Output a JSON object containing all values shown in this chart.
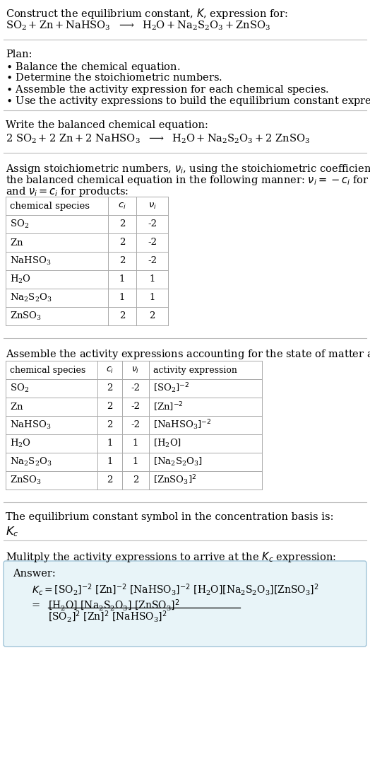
{
  "bg_color": "#ffffff",
  "text_color": "#000000",
  "line_color": "#bbbbbb",
  "answer_bg": "#e8f4f8",
  "answer_border": "#a0c4d8",
  "font_main": 10.5,
  "font_small": 9.5,
  "table1_rows": [
    [
      "SO_2",
      "2",
      "-2"
    ],
    [
      "Zn",
      "2",
      "-2"
    ],
    [
      "NaHSO_3",
      "2",
      "-2"
    ],
    [
      "H_2O",
      "1",
      "1"
    ],
    [
      "Na_2S_2O_3",
      "1",
      "1"
    ],
    [
      "ZnSO_3",
      "2",
      "2"
    ]
  ],
  "table2_rows": [
    [
      "SO_2",
      "2",
      "-2",
      "[SO_2]^{-2}"
    ],
    [
      "Zn",
      "2",
      "-2",
      "[Zn]^{-2}"
    ],
    [
      "NaHSO_3",
      "2",
      "-2",
      "[NaHSO_3]^{-2}"
    ],
    [
      "H_2O",
      "1",
      "1",
      "[H_2O]"
    ],
    [
      "Na_2S_2O_3",
      "1",
      "1",
      "[Na_2S_2O_3]"
    ],
    [
      "ZnSO_3",
      "2",
      "2",
      "[ZnSO_3]^2"
    ]
  ]
}
